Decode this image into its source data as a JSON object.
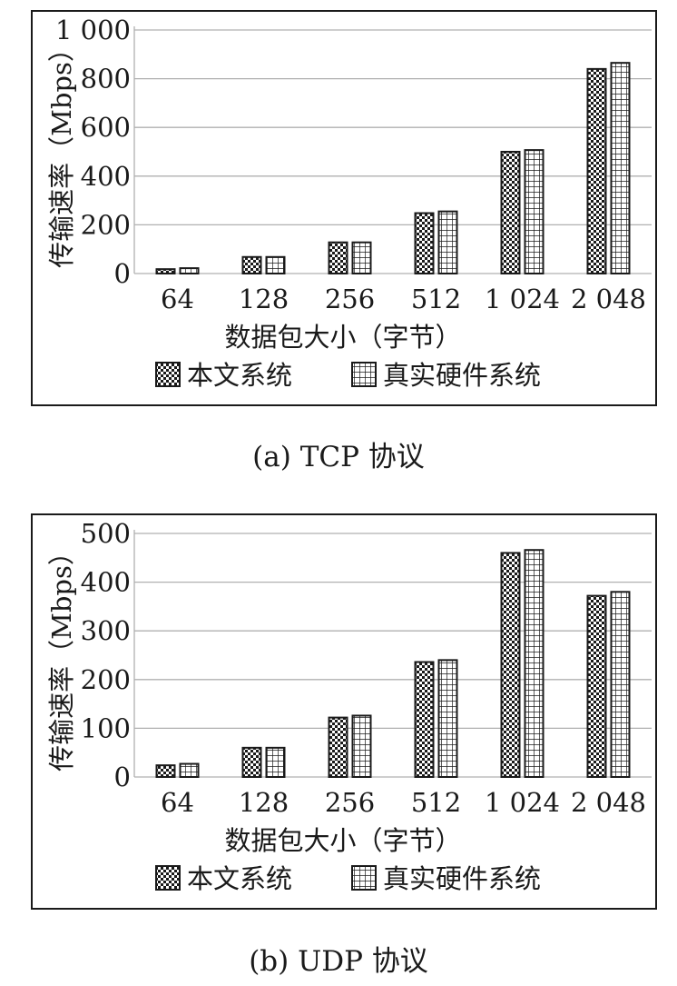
{
  "chart_data": [
    {
      "type": "bar",
      "caption": "(a) TCP 协议",
      "categories": [
        "64",
        "128",
        "256",
        "512",
        "1 024",
        "2 048"
      ],
      "series": [
        {
          "name": "本文系统",
          "values": [
            18,
            68,
            128,
            248,
            500,
            840
          ]
        },
        {
          "name": "真实硬件系统",
          "values": [
            22,
            68,
            128,
            255,
            507,
            865
          ]
        }
      ],
      "xlabel": "数据包大小（字节）",
      "ylabel": "传输速率（Mbps）",
      "yticks": [
        "0",
        "200",
        "400",
        "600",
        "800",
        "1 000"
      ],
      "ylim": [
        0,
        1000
      ],
      "grid": true,
      "legend_position": "bottom"
    },
    {
      "type": "bar",
      "caption": "(b) UDP 协议",
      "categories": [
        "64",
        "128",
        "256",
        "512",
        "1 024",
        "2 048"
      ],
      "series": [
        {
          "name": "本文系统",
          "values": [
            24,
            60,
            122,
            236,
            460,
            372
          ]
        },
        {
          "name": "真实硬件系统",
          "values": [
            27,
            60,
            126,
            240,
            466,
            380
          ]
        }
      ],
      "xlabel": "数据包大小（字节）",
      "ylabel": "传输速率（Mbps）",
      "yticks": [
        "0",
        "100",
        "200",
        "300",
        "400",
        "500"
      ],
      "ylim": [
        0,
        500
      ],
      "grid": true,
      "legend_position": "bottom"
    }
  ],
  "colors": {
    "bar_dark": "#1a1a1a",
    "bar_light": "#ffffff",
    "grid": "#b0b0b0",
    "border": "#1a1a1a"
  }
}
